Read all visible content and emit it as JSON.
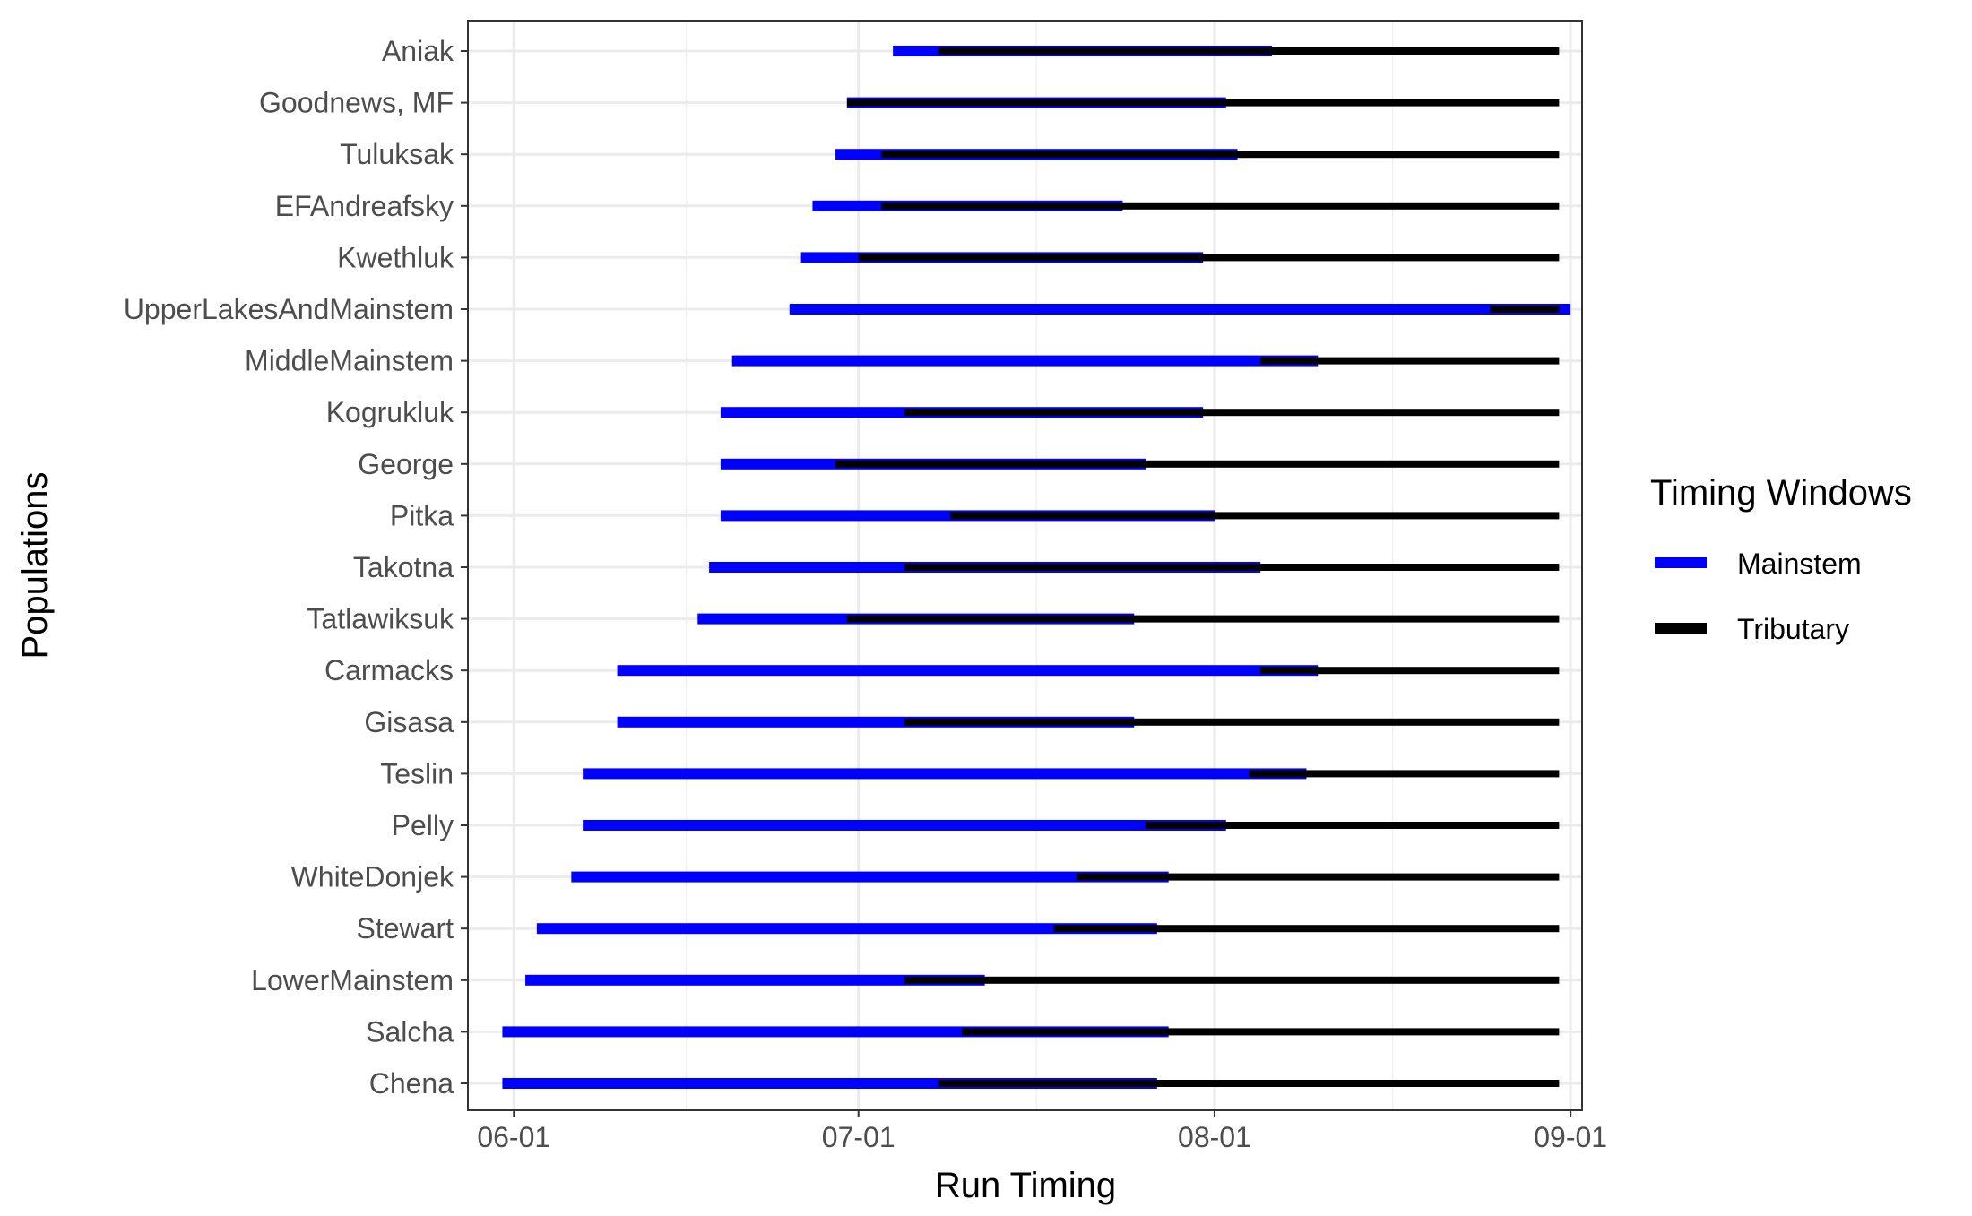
{
  "chart_data": {
    "type": "bar",
    "orientation": "horizontal-ranges",
    "xlabel": "Run Timing",
    "ylabel": "Populations",
    "x_domain": [
      "2000-05-28",
      "2000-09-02"
    ],
    "x_ticks": [
      {
        "date": "2000-06-01",
        "label": "06-01"
      },
      {
        "date": "2000-07-01",
        "label": "07-01"
      },
      {
        "date": "2000-08-01",
        "label": "08-01"
      },
      {
        "date": "2000-09-01",
        "label": "09-01"
      }
    ],
    "legend": {
      "title": "Timing Windows",
      "placement": "right",
      "entries": [
        {
          "name": "Mainstem",
          "color": "#0000ff"
        },
        {
          "name": "Tributary",
          "color": "#000000"
        }
      ]
    },
    "grid": true,
    "series": [
      {
        "name": "Tributary",
        "color": "#000000"
      },
      {
        "name": "Mainstem",
        "color": "#0000ff"
      }
    ],
    "rows": [
      {
        "population": "Aniak",
        "mainstem": [
          "2000-07-04",
          "2000-08-06"
        ],
        "tributary": [
          "2000-07-08",
          "2000-08-31"
        ]
      },
      {
        "population": "Goodnews, MF",
        "mainstem": [
          "2000-06-30",
          "2000-08-02"
        ],
        "tributary": [
          "2000-06-30",
          "2000-08-31"
        ]
      },
      {
        "population": "Tuluksak",
        "mainstem": [
          "2000-06-29",
          "2000-08-03"
        ],
        "tributary": [
          "2000-07-03",
          "2000-08-31"
        ]
      },
      {
        "population": "EFAndreafsky",
        "mainstem": [
          "2000-06-27",
          "2000-07-24"
        ],
        "tributary": [
          "2000-07-03",
          "2000-08-31"
        ]
      },
      {
        "population": "Kwethluk",
        "mainstem": [
          "2000-06-26",
          "2000-07-31"
        ],
        "tributary": [
          "2000-07-01",
          "2000-08-31"
        ]
      },
      {
        "population": "UpperLakesAndMainstem",
        "mainstem": [
          "2000-06-25",
          "2000-09-01"
        ],
        "tributary": [
          "2000-08-25",
          "2000-08-31"
        ]
      },
      {
        "population": "MiddleMainstem",
        "mainstem": [
          "2000-06-20",
          "2000-08-10"
        ],
        "tributary": [
          "2000-08-05",
          "2000-08-31"
        ]
      },
      {
        "population": "Kogrukluk",
        "mainstem": [
          "2000-06-19",
          "2000-07-31"
        ],
        "tributary": [
          "2000-07-05",
          "2000-08-31"
        ]
      },
      {
        "population": "George",
        "mainstem": [
          "2000-06-19",
          "2000-07-26"
        ],
        "tributary": [
          "2000-06-29",
          "2000-08-31"
        ]
      },
      {
        "population": "Pitka",
        "mainstem": [
          "2000-06-19",
          "2000-08-01"
        ],
        "tributary": [
          "2000-07-09",
          "2000-08-31"
        ]
      },
      {
        "population": "Takotna",
        "mainstem": [
          "2000-06-18",
          "2000-08-05"
        ],
        "tributary": [
          "2000-07-05",
          "2000-08-31"
        ]
      },
      {
        "population": "Tatlawiksuk",
        "mainstem": [
          "2000-06-17",
          "2000-07-25"
        ],
        "tributary": [
          "2000-06-30",
          "2000-08-31"
        ]
      },
      {
        "population": "Carmacks",
        "mainstem": [
          "2000-06-10",
          "2000-08-10"
        ],
        "tributary": [
          "2000-08-05",
          "2000-08-31"
        ]
      },
      {
        "population": "Gisasa",
        "mainstem": [
          "2000-06-10",
          "2000-07-25"
        ],
        "tributary": [
          "2000-07-05",
          "2000-08-31"
        ]
      },
      {
        "population": "Teslin",
        "mainstem": [
          "2000-06-07",
          "2000-08-09"
        ],
        "tributary": [
          "2000-08-04",
          "2000-08-31"
        ]
      },
      {
        "population": "Pelly",
        "mainstem": [
          "2000-06-07",
          "2000-08-02"
        ],
        "tributary": [
          "2000-07-26",
          "2000-08-31"
        ]
      },
      {
        "population": "WhiteDonjek",
        "mainstem": [
          "2000-06-06",
          "2000-07-28"
        ],
        "tributary": [
          "2000-07-20",
          "2000-08-31"
        ]
      },
      {
        "population": "Stewart",
        "mainstem": [
          "2000-06-03",
          "2000-07-27"
        ],
        "tributary": [
          "2000-07-18",
          "2000-08-31"
        ]
      },
      {
        "population": "LowerMainstem",
        "mainstem": [
          "2000-06-02",
          "2000-07-12"
        ],
        "tributary": [
          "2000-07-05",
          "2000-08-31"
        ]
      },
      {
        "population": "Salcha",
        "mainstem": [
          "2000-05-31",
          "2000-07-28"
        ],
        "tributary": [
          "2000-07-10",
          "2000-08-31"
        ]
      },
      {
        "population": "Chena",
        "mainstem": [
          "2000-05-31",
          "2000-07-27"
        ],
        "tributary": [
          "2000-07-08",
          "2000-08-31"
        ]
      }
    ]
  }
}
